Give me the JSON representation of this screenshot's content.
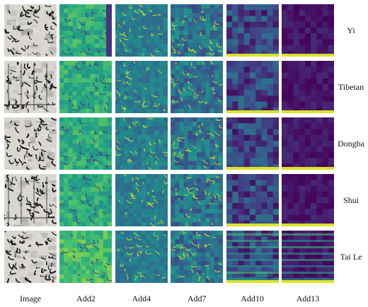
{
  "figure": {
    "row_labels": [
      "Yi",
      "Tibetan",
      "Dongba",
      "Shui",
      "Tai Le"
    ],
    "column_labels": [
      "Image",
      "Add2",
      "Add4",
      "Add7",
      "Add10",
      "Add13"
    ]
  }
}
